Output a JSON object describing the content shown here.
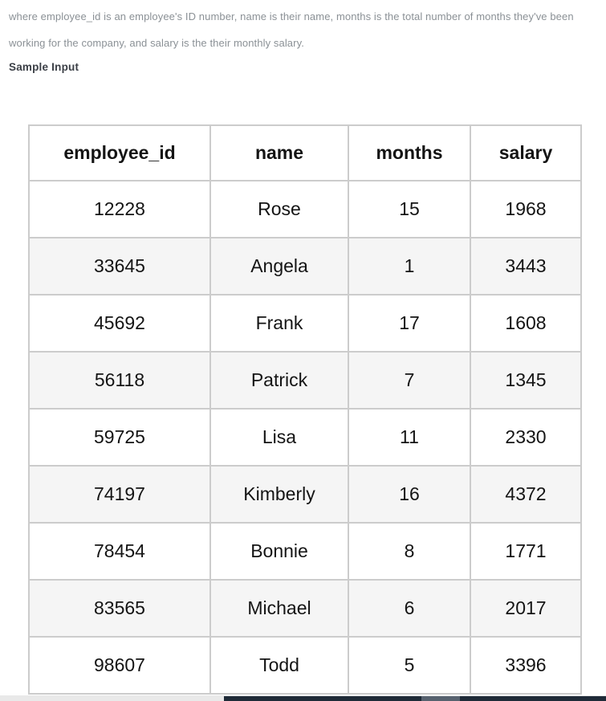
{
  "colors": {
    "page_bg": "#ffffff",
    "muted_text": "#8b9196",
    "heading_text": "#3b3f46",
    "table_text": "#141414",
    "table_border": "#cccccc",
    "row_stripe": "#f5f5f5",
    "bottom_strip": "#e9e9e9",
    "scrollbar_track": "#1f2b38",
    "scrollbar_thumb": "#57626f"
  },
  "description": {
    "lines": [
      "where employee_id is an employee's ID number, name is their name, months is the total number of months they've been",
      "working for the company, and salary is the their monthly salary."
    ]
  },
  "section": {
    "heading": "Sample Input"
  },
  "sample_table": {
    "columns": [
      "employee_id",
      "name",
      "months",
      "salary"
    ],
    "rows": [
      [
        "12228",
        "Rose",
        "15",
        "1968"
      ],
      [
        "33645",
        "Angela",
        "1",
        "3443"
      ],
      [
        "45692",
        "Frank",
        "17",
        "1608"
      ],
      [
        "56118",
        "Patrick",
        "7",
        "1345"
      ],
      [
        "59725",
        "Lisa",
        "11",
        "2330"
      ],
      [
        "74197",
        "Kimberly",
        "16",
        "4372"
      ],
      [
        "78454",
        "Bonnie",
        "8",
        "1771"
      ],
      [
        "83565",
        "Michael",
        "6",
        "2017"
      ],
      [
        "98607",
        "Todd",
        "5",
        "3396"
      ]
    ]
  }
}
